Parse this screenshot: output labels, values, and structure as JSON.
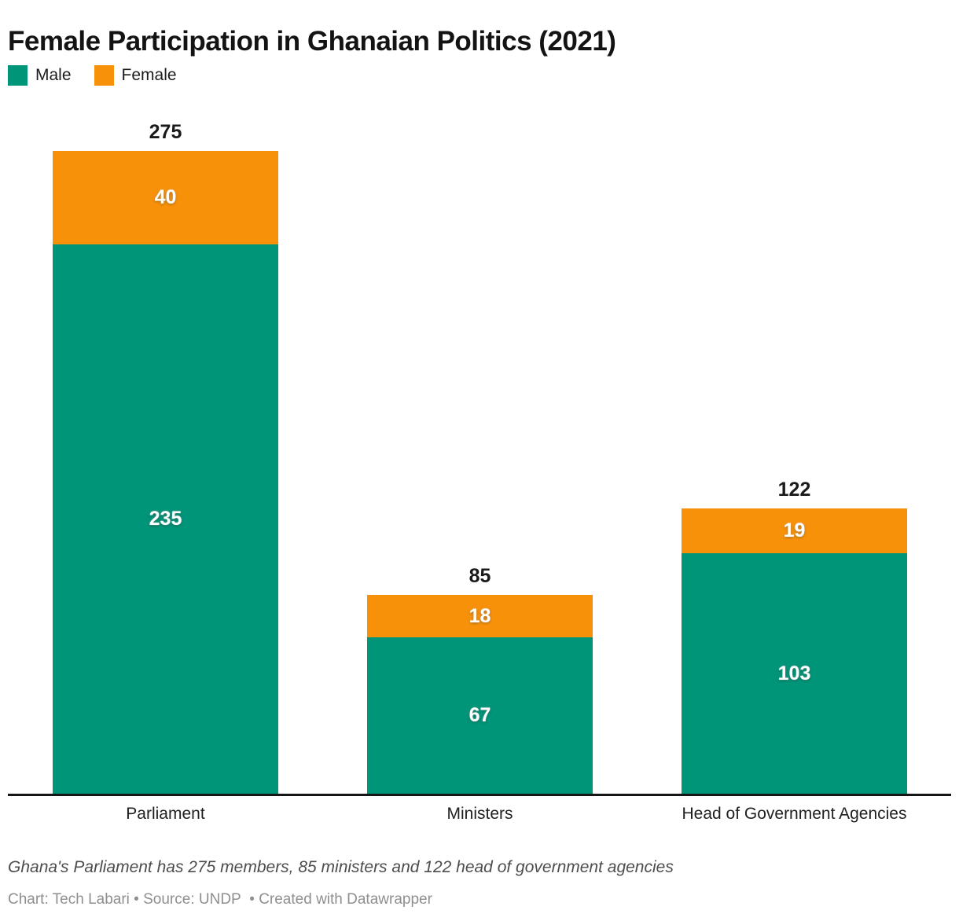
{
  "title": "Female Participation in Ghanaian Politics (2021)",
  "legend": {
    "items": [
      {
        "label": "Male",
        "color": "#009478"
      },
      {
        "label": "Female",
        "color": "#f8910a"
      }
    ]
  },
  "chart_data": {
    "type": "bar",
    "stacked": true,
    "title": "Female Participation in Ghanaian Politics (2021)",
    "categories": [
      "Parliament",
      "Ministers",
      "Head of Government Agencies"
    ],
    "series": [
      {
        "name": "Male",
        "color": "#009478",
        "values": [
          235,
          67,
          103
        ]
      },
      {
        "name": "Female",
        "color": "#f8910a",
        "values": [
          40,
          18,
          19
        ]
      }
    ],
    "totals": [
      275,
      85,
      122
    ],
    "ylim": [
      0,
      275
    ],
    "grid": false,
    "legend_position": "top-left",
    "xlabel": "",
    "ylabel": ""
  },
  "footer": {
    "note": "Ghana's Parliament has 275 members, 85 ministers and 122 head of government agencies",
    "byline": "Chart: Tech Labari • Source: UNDP  • Created with Datawrapper"
  }
}
